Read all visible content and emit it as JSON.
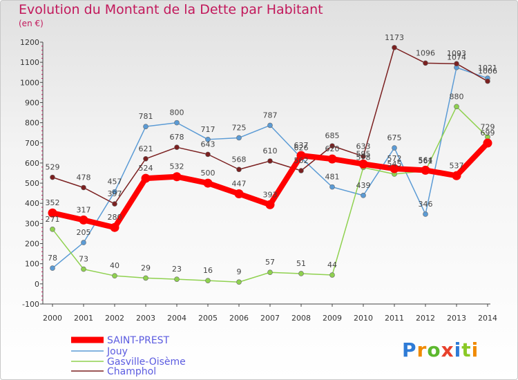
{
  "header": {
    "title": "Evolution du Montant de la Dette par Habitant",
    "subtitle": "(en €)"
  },
  "logo": {
    "text": "Proxiti",
    "colors": [
      "#2e7bd6",
      "#f08a00",
      "#5cb82e",
      "#e8412c",
      "#2e7bd6",
      "#8ac926",
      "#f08a00"
    ]
  },
  "chart_data": {
    "type": "line",
    "x": [
      "2000",
      "2001",
      "2002",
      "2003",
      "2004",
      "2005",
      "2006",
      "2007",
      "2008",
      "2009",
      "2010",
      "2011",
      "2012",
      "2013",
      "2014"
    ],
    "ylim": [
      -100,
      1200
    ],
    "yticks": [
      -100,
      0,
      100,
      200,
      300,
      400,
      500,
      600,
      700,
      800,
      900,
      1000,
      1100,
      1200
    ],
    "grid": false,
    "legend_position": "bottom-left",
    "series": [
      {
        "name": "SAINT-PREST",
        "color": "#ff0000",
        "values": [
          352,
          317,
          280,
          524,
          532,
          500,
          447,
          393,
          637,
          620,
          595,
          572,
          564,
          537,
          699
        ],
        "labels": [
          "352",
          "317",
          "280",
          "524",
          "532",
          "500",
          "447",
          "393",
          "637",
          "620",
          "595",
          "572",
          "564",
          "537",
          "699"
        ]
      },
      {
        "name": "Jouy",
        "color": "#5b9bd5",
        "values": [
          78,
          205,
          457,
          781,
          800,
          717,
          725,
          787,
          626,
          481,
          439,
          675,
          346,
          1074,
          1021
        ],
        "labels": [
          "78",
          "205",
          "457",
          "781",
          "800",
          "717",
          "725",
          "787",
          "626",
          "481",
          "439",
          "675",
          "346",
          "1074",
          "1021"
        ]
      },
      {
        "name": "Gasville-Oisème",
        "color": "#8fd14f",
        "values": [
          271,
          73,
          40,
          29,
          23,
          16,
          9,
          57,
          51,
          44,
          578,
          545,
          561,
          880,
          729
        ],
        "labels": [
          "271",
          "73",
          "40",
          "29",
          "23",
          "16",
          "9",
          "57",
          "51",
          "44",
          "578",
          "545",
          "561",
          "880",
          "729"
        ]
      },
      {
        "name": "Champhol",
        "color": "#7b2020",
        "values": [
          529,
          478,
          397,
          621,
          678,
          643,
          568,
          610,
          562,
          685,
          633,
          1173,
          1096,
          1093,
          1006
        ],
        "labels": [
          "529",
          "478",
          "397",
          "621",
          "678",
          "643",
          "568",
          "610",
          "562",
          "685",
          "633",
          "1173",
          "1096",
          "1093",
          "1006"
        ]
      }
    ]
  }
}
